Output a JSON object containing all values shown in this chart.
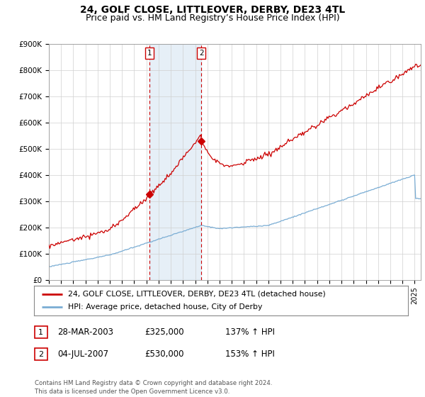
{
  "title": "24, GOLF CLOSE, LITTLEOVER, DERBY, DE23 4TL",
  "subtitle": "Price paid vs. HM Land Registry’s House Price Index (HPI)",
  "ylim": [
    0,
    900000
  ],
  "yticks": [
    0,
    100000,
    200000,
    300000,
    400000,
    500000,
    600000,
    700000,
    800000,
    900000
  ],
  "ytick_labels": [
    "£0",
    "£100K",
    "£200K",
    "£300K",
    "£400K",
    "£500K",
    "£600K",
    "£700K",
    "£800K",
    "£900K"
  ],
  "hpi_color": "#7aadd4",
  "price_color": "#cc0000",
  "vline_color": "#cc0000",
  "marker1_date": 2003.24,
  "marker1_price": 325000,
  "marker1_label": "1",
  "marker2_date": 2007.5,
  "marker2_price": 530000,
  "marker2_label": "2",
  "shade_color": "#cfe0f0",
  "shade_alpha": 0.5,
  "legend_entries": [
    "24, GOLF CLOSE, LITTLEOVER, DERBY, DE23 4TL (detached house)",
    "HPI: Average price, detached house, City of Derby"
  ],
  "table_rows": [
    [
      "1",
      "28-MAR-2003",
      "£325,000",
      "137% ↑ HPI"
    ],
    [
      "2",
      "04-JUL-2007",
      "£530,000",
      "153% ↑ HPI"
    ]
  ],
  "footer": "Contains HM Land Registry data © Crown copyright and database right 2024.\nThis data is licensed under the Open Government Licence v3.0.",
  "title_fontsize": 10,
  "subtitle_fontsize": 9,
  "tick_fontsize": 7.5,
  "background_color": "#ffffff"
}
